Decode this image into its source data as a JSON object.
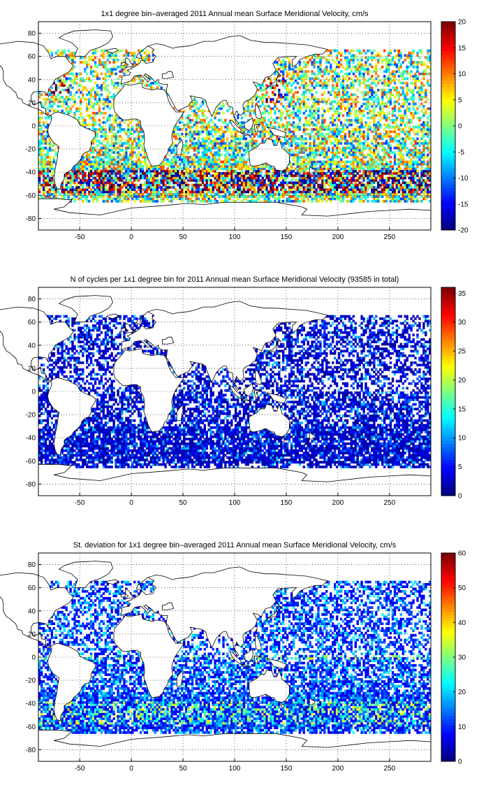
{
  "chart_data": [
    {
      "type": "heatmap",
      "title": "1x1 degree bin–averaged 2011 Annual mean Surface Meridional Velocity, cm/s",
      "xlabel": "",
      "ylabel": "",
      "xlim": [
        -90,
        290
      ],
      "ylim": [
        -90,
        90
      ],
      "x_ticks": [
        -50,
        0,
        50,
        100,
        150,
        200,
        250
      ],
      "y_ticks": [
        80,
        60,
        40,
        20,
        0,
        -20,
        -40,
        -60,
        -80
      ],
      "grid": true,
      "colormap": "jet",
      "colorbar": {
        "min": -20,
        "max": 20,
        "ticks": [
          20,
          15,
          10,
          5,
          0,
          -5,
          -10,
          -15,
          -20
        ]
      },
      "field": "annual mean surface meridional velocity (cm/s)"
    },
    {
      "type": "heatmap",
      "title": "N of cycles per 1x1 degree bin for 2011 Annual mean Surface Meridional Velocity (93585 in total)",
      "xlabel": "",
      "ylabel": "",
      "xlim": [
        -90,
        290
      ],
      "ylim": [
        -90,
        90
      ],
      "x_ticks": [
        -50,
        0,
        50,
        100,
        150,
        200,
        250
      ],
      "y_ticks": [
        80,
        60,
        40,
        20,
        0,
        -20,
        -40,
        -60,
        -80
      ],
      "grid": true,
      "colormap": "jet",
      "colorbar": {
        "min": 0,
        "max": 36,
        "ticks": [
          35,
          30,
          25,
          20,
          15,
          10,
          5,
          0
        ]
      },
      "total_cycles": 93585,
      "field": "number of cycles per bin"
    },
    {
      "type": "heatmap",
      "title": "St. deviation for 1x1 degree bin–averaged 2011 Annual mean Surface Meridional Velocity, cm/s",
      "xlabel": "",
      "ylabel": "",
      "xlim": [
        -90,
        290
      ],
      "ylim": [
        -90,
        90
      ],
      "x_ticks": [
        -50,
        0,
        50,
        100,
        150,
        200,
        250
      ],
      "y_ticks": [
        80,
        60,
        40,
        20,
        0,
        -20,
        -40,
        -60,
        -80
      ],
      "grid": true,
      "colormap": "jet",
      "colorbar": {
        "min": 0,
        "max": 60,
        "ticks": [
          60,
          50,
          40,
          30,
          20,
          10,
          0
        ]
      },
      "field": "standard deviation of surface meridional velocity (cm/s)"
    }
  ],
  "colors": {
    "background": "#ffffff",
    "axes": "#000000",
    "land": "#ffffff",
    "grid": "#000000"
  }
}
